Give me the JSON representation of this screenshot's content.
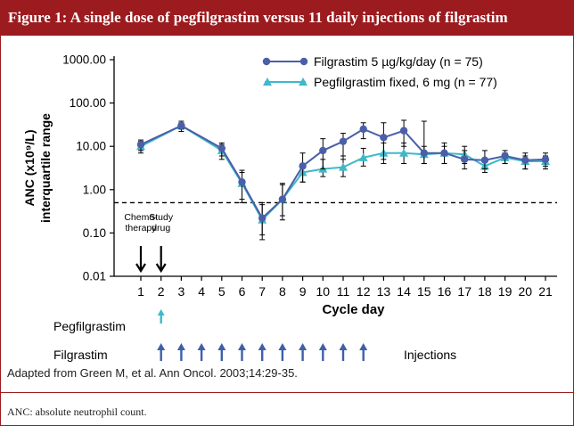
{
  "header": {
    "title": "Figure 1: A single dose of pegfilgrastim versus 11 daily injections of filgrastim"
  },
  "credit": "Adapted from Green M, et al. Ann Oncol. 2003;14:29-35.",
  "footnote": "ANC: absolute neutrophil count.",
  "colors": {
    "filgrastim": "#4a5fa8",
    "pegfilgrastim": "#3fb8c9",
    "injection_arrow": "#3f5fa8",
    "brand": "#9b1b1f"
  },
  "chart_data": {
    "type": "line",
    "title": "",
    "xlabel": "Cycle day",
    "ylabel_line1": "ANC (x10⁹/L)",
    "ylabel_line2": "interquartile range",
    "yscale": "log",
    "ylim": [
      0.01,
      1000
    ],
    "y_ticks": [
      "1000.00",
      "100.00",
      "10.00",
      "1.00",
      "0.10",
      "0.01"
    ],
    "x": [
      1,
      2,
      3,
      4,
      5,
      6,
      7,
      8,
      9,
      10,
      11,
      12,
      13,
      14,
      15,
      16,
      17,
      18,
      19,
      20,
      21
    ],
    "reference_line": {
      "value": 0.5,
      "style": "dashed"
    },
    "legend_position": "top-right",
    "series": [
      {
        "name": "Filgrastim 5 µg/kg/day (n = 75)",
        "marker": "circle",
        "points": [
          [
            1,
            11
          ],
          [
            3,
            30
          ],
          [
            5,
            9
          ],
          [
            6,
            1.5
          ],
          [
            7,
            0.22
          ],
          [
            8,
            0.6
          ],
          [
            9,
            3.5
          ],
          [
            10,
            8
          ],
          [
            11,
            13
          ],
          [
            12,
            25
          ],
          [
            13,
            16
          ],
          [
            14,
            23
          ],
          [
            15,
            7
          ],
          [
            16,
            7
          ],
          [
            17,
            5
          ],
          [
            18,
            4.8
          ],
          [
            19,
            6
          ],
          [
            20,
            4.8
          ],
          [
            21,
            5
          ]
        ],
        "err_low": [
          8,
          25,
          6,
          0.6,
          0.09,
          0.25,
          1.5,
          3,
          5,
          15,
          5,
          10,
          4,
          4,
          3,
          3,
          4,
          3,
          3.5
        ],
        "err_high": [
          14,
          38,
          12,
          2.8,
          0.5,
          1.4,
          7,
          15,
          20,
          35,
          35,
          40,
          38,
          12,
          8,
          8,
          8,
          7,
          7
        ]
      },
      {
        "name": "Pegfilgrastim fixed, 6 mg (n = 77)",
        "marker": "triangle",
        "points": [
          [
            1,
            10
          ],
          [
            3,
            30
          ],
          [
            5,
            8
          ],
          [
            6,
            1.4
          ],
          [
            7,
            0.2
          ],
          [
            8,
            0.6
          ],
          [
            9,
            2.5
          ],
          [
            10,
            3
          ],
          [
            11,
            3.3
          ],
          [
            12,
            5.5
          ],
          [
            13,
            7
          ],
          [
            14,
            7
          ],
          [
            15,
            6.5
          ],
          [
            16,
            7
          ],
          [
            17,
            6.5
          ],
          [
            18,
            3.5
          ],
          [
            19,
            5.5
          ],
          [
            20,
            4.5
          ],
          [
            21,
            4.5
          ]
        ],
        "err_low": [
          7,
          22,
          5,
          0.5,
          0.07,
          0.2,
          1.5,
          2,
          2,
          3.5,
          4,
          4,
          4,
          4,
          4,
          2.5,
          4,
          3,
          3
        ],
        "err_high": [
          13,
          35,
          11,
          2.5,
          0.45,
          1.3,
          4,
          5,
          6,
          9,
          12,
          12,
          10,
          10,
          10,
          5,
          7,
          6,
          6
        ]
      }
    ],
    "annotations": [
      {
        "label_line1": "Chemo-",
        "label_line2": "therapy",
        "day": 1
      },
      {
        "label_line1": "Study",
        "label_line2": "drug",
        "day": 2
      }
    ],
    "injection_rows": [
      {
        "label": "Pegfilgrastim",
        "days": [
          2
        ]
      },
      {
        "label": "Filgrastim",
        "days": [
          2,
          3,
          4,
          5,
          6,
          7,
          8,
          9,
          10,
          11,
          12
        ],
        "note": "Injections"
      }
    ]
  }
}
